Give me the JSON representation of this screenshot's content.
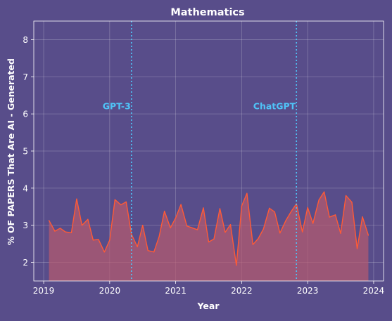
{
  "chart_data": {
    "type": "area",
    "title": "Mathematics",
    "xlabel": "Year",
    "ylabel": "% OF PAPERS That Are AI - Generated",
    "xlim": [
      2018.85,
      2024.15
    ],
    "ylim": [
      1.5,
      8.5
    ],
    "x_ticks": [
      2019,
      2020,
      2021,
      2022,
      2023,
      2024
    ],
    "x_tick_labels": [
      "2019",
      "2020",
      "2021",
      "2022",
      "2023",
      "2024"
    ],
    "y_ticks": [
      2,
      3,
      4,
      5,
      6,
      7,
      8
    ],
    "y_tick_labels": [
      "2",
      "3",
      "4",
      "5",
      "6",
      "7",
      "8"
    ],
    "grid": true,
    "series": [
      {
        "x": [
          2019.08,
          2019.17,
          2019.25,
          2019.33,
          2019.42,
          2019.5,
          2019.58,
          2019.67,
          2019.75,
          2019.83,
          2019.92,
          2020.0,
          2020.08,
          2020.17,
          2020.25,
          2020.33,
          2020.42,
          2020.5,
          2020.58,
          2020.67,
          2020.75,
          2020.83,
          2020.92,
          2021.0,
          2021.08,
          2021.17,
          2021.25,
          2021.33,
          2021.42,
          2021.5,
          2021.58,
          2021.67,
          2021.75,
          2021.83,
          2021.92,
          2022.0,
          2022.08,
          2022.17,
          2022.25,
          2022.33,
          2022.42,
          2022.5,
          2022.58,
          2022.67,
          2022.75,
          2022.83,
          2022.92,
          2023.0,
          2023.08,
          2023.17,
          2023.25,
          2023.33,
          2023.42,
          2023.5,
          2023.58,
          2023.67,
          2023.75,
          2023.83,
          2023.92
        ],
        "values": [
          3.13,
          2.84,
          2.92,
          2.82,
          2.8,
          3.71,
          3.0,
          3.16,
          2.6,
          2.62,
          2.28,
          2.6,
          3.69,
          3.55,
          3.63,
          2.76,
          2.42,
          3.0,
          2.32,
          2.28,
          2.7,
          3.38,
          2.93,
          3.2,
          3.56,
          2.98,
          2.93,
          2.88,
          3.47,
          2.55,
          2.63,
          3.45,
          2.81,
          3.02,
          1.92,
          3.52,
          3.86,
          2.48,
          2.64,
          2.9,
          3.46,
          3.36,
          2.79,
          3.13,
          3.37,
          3.58,
          2.82,
          3.48,
          3.05,
          3.68,
          3.9,
          3.22,
          3.28,
          2.78,
          3.8,
          3.62,
          2.37,
          3.23,
          2.73
        ],
        "color": "#ff5a36",
        "fill": "#b85a6e"
      }
    ],
    "vlines": [
      {
        "x": 2020.33,
        "label": "GPT-3",
        "color": "#4fc3f7"
      },
      {
        "x": 2022.83,
        "label": "ChatGPT",
        "color": "#4fc3f7"
      }
    ]
  }
}
